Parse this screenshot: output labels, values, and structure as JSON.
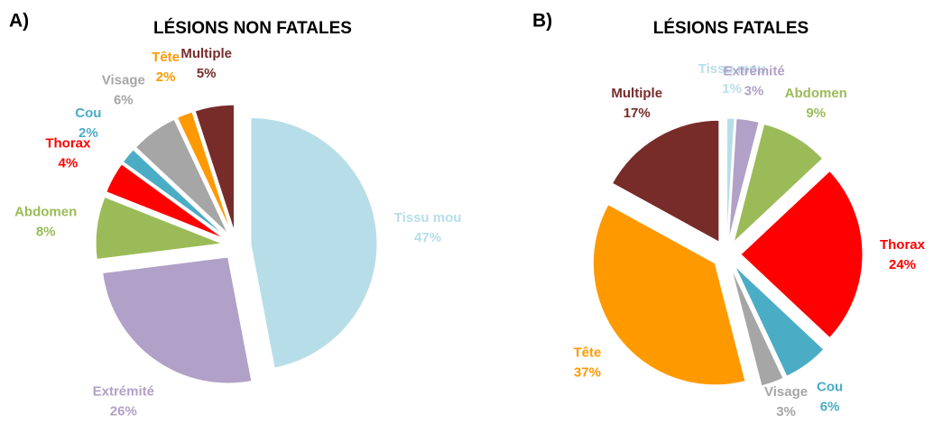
{
  "chart_data": [
    {
      "type": "pie",
      "panel_label": "A)",
      "title": "LÉSIONS NON FATALES",
      "categories": [
        "Tissu mou",
        "Extrémité",
        "Abdomen",
        "Thorax",
        "Cou",
        "Visage",
        "Tête",
        "Multiple"
      ],
      "values": [
        47,
        26,
        8,
        4,
        2,
        6,
        2,
        5
      ],
      "value_labels": [
        "47%",
        "26%",
        "8%",
        "4%",
        "2%",
        "6%",
        "2%",
        "5%"
      ],
      "colors": [
        "#b7dee8",
        "#b1a0c7",
        "#9bbb59",
        "#ff0000",
        "#4bacc6",
        "#a6a6a6",
        "#ff9900",
        "#772c2a"
      ]
    },
    {
      "type": "pie",
      "panel_label": "B)",
      "title": "LÉSIONS FATALES",
      "categories": [
        "Tissu mou",
        "Extrémité",
        "Abdomen",
        "Thorax",
        "Cou",
        "Visage",
        "Tête",
        "Multiple"
      ],
      "values": [
        1,
        3,
        9,
        24,
        6,
        3,
        37,
        17
      ],
      "value_labels": [
        "1%",
        "3%",
        "9%",
        "24%",
        "6%",
        "3%",
        "37%",
        "17%"
      ],
      "colors": [
        "#b7dee8",
        "#b1a0c7",
        "#9bbb59",
        "#ff0000",
        "#4bacc6",
        "#a6a6a6",
        "#ff9900",
        "#772c2a"
      ]
    }
  ]
}
